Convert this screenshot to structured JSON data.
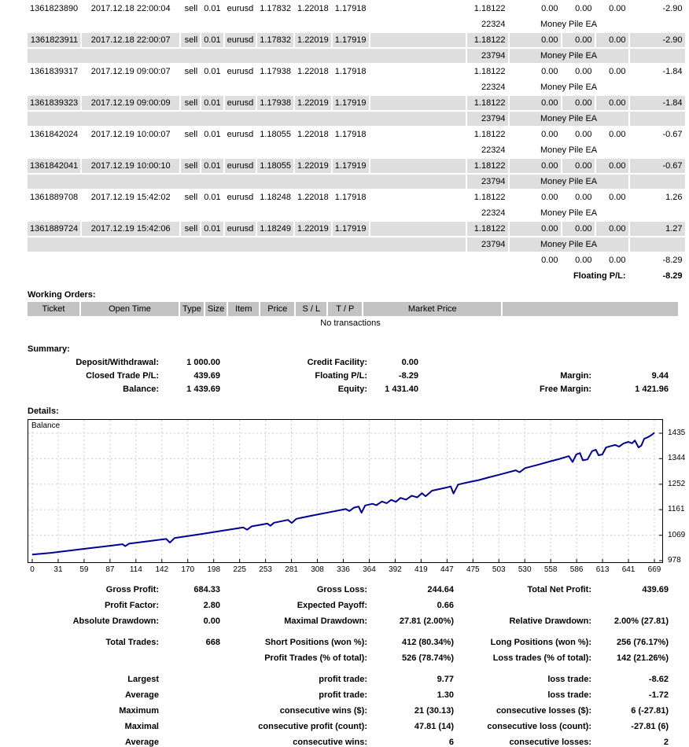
{
  "colors": {
    "row_shade": "#dedede",
    "header_shade": "#c3c3c3",
    "chart_line": "#000096",
    "grid_line": "#cccccc"
  },
  "trades": {
    "rows": [
      {
        "ticket": "1361823890",
        "open_time": "2017.12.18 22:00:04",
        "type": "sell",
        "size": "0.01",
        "item": "eurusd",
        "price": "1.17832",
        "sl": "1.22018",
        "tp": "1.17918",
        "close_price": "1.18122",
        "commission": "0.00",
        "taxes": "0.00",
        "swap": "0.00",
        "profit": "-2.90",
        "magic": "22324",
        "comment": "Money Pile EA",
        "shaded": false
      },
      {
        "ticket": "1361823911",
        "open_time": "2017.12.18 22:00:07",
        "type": "sell",
        "size": "0.01",
        "item": "eurusd",
        "price": "1.17832",
        "sl": "1.22019",
        "tp": "1.17919",
        "close_price": "1.18122",
        "commission": "0.00",
        "taxes": "0.00",
        "swap": "0.00",
        "profit": "-2.90",
        "magic": "23794",
        "comment": "Money Pile EA",
        "shaded": true
      },
      {
        "ticket": "1361839317",
        "open_time": "2017.12.19 09:00:07",
        "type": "sell",
        "size": "0.01",
        "item": "eurusd",
        "price": "1.17938",
        "sl": "1.22018",
        "tp": "1.17918",
        "close_price": "1.18122",
        "commission": "0.00",
        "taxes": "0.00",
        "swap": "0.00",
        "profit": "-1.84",
        "magic": "22324",
        "comment": "Money Pile EA",
        "shaded": false
      },
      {
        "ticket": "1361839323",
        "open_time": "2017.12.19 09:00:09",
        "type": "sell",
        "size": "0.01",
        "item": "eurusd",
        "price": "1.17938",
        "sl": "1.22019",
        "tp": "1.17919",
        "close_price": "1.18122",
        "commission": "0.00",
        "taxes": "0.00",
        "swap": "0.00",
        "profit": "-1.84",
        "magic": "23794",
        "comment": "Money Pile EA",
        "shaded": true
      },
      {
        "ticket": "1361842024",
        "open_time": "2017.12.19 10:00:07",
        "type": "sell",
        "size": "0.01",
        "item": "eurusd",
        "price": "1.18055",
        "sl": "1.22018",
        "tp": "1.17918",
        "close_price": "1.18122",
        "commission": "0.00",
        "taxes": "0.00",
        "swap": "0.00",
        "profit": "-0.67",
        "magic": "22324",
        "comment": "Money Pile EA",
        "shaded": false
      },
      {
        "ticket": "1361842041",
        "open_time": "2017.12.19 10:00:10",
        "type": "sell",
        "size": "0.01",
        "item": "eurusd",
        "price": "1.18055",
        "sl": "1.22019",
        "tp": "1.17919",
        "close_price": "1.18122",
        "commission": "0.00",
        "taxes": "0.00",
        "swap": "0.00",
        "profit": "-0.67",
        "magic": "23794",
        "comment": "Money Pile EA",
        "shaded": true
      },
      {
        "ticket": "1361889708",
        "open_time": "2017.12.19 15:42:02",
        "type": "sell",
        "size": "0.01",
        "item": "eurusd",
        "price": "1.18248",
        "sl": "1.22018",
        "tp": "1.17918",
        "close_price": "1.18122",
        "commission": "0.00",
        "taxes": "0.00",
        "swap": "0.00",
        "profit": "1.26",
        "magic": "22324",
        "comment": "Money Pile EA",
        "shaded": false
      },
      {
        "ticket": "1361889724",
        "open_time": "2017.12.19 15:42:06",
        "type": "sell",
        "size": "0.01",
        "item": "eurusd",
        "price": "1.18249",
        "sl": "1.22019",
        "tp": "1.17919",
        "close_price": "1.18122",
        "commission": "0.00",
        "taxes": "0.00",
        "swap": "0.00",
        "profit": "1.27",
        "magic": "23794",
        "comment": "Money Pile EA",
        "shaded": true
      }
    ],
    "totals": {
      "commission": "0.00",
      "taxes": "0.00",
      "swap": "0.00",
      "profit": "-8.29"
    },
    "floating_label": "Floating P/L:",
    "floating_value": "-8.29"
  },
  "working_orders": {
    "title": "Working Orders:",
    "headers": [
      "Ticket",
      "Open Time",
      "Type",
      "Size",
      "Item",
      "Price",
      "S / L",
      "T / P",
      "Market Price",
      ""
    ],
    "empty_text": "No transactions"
  },
  "summary": {
    "title": "Summary:",
    "rows": [
      [
        "Deposit/Withdrawal:",
        "1 000.00",
        "Credit Facility:",
        "0.00",
        "",
        ""
      ],
      [
        "Closed Trade P/L:",
        "439.69",
        "Floating P/L:",
        "-8.29",
        "Margin:",
        "9.44"
      ],
      [
        "Balance:",
        "1 439.69",
        "Equity:",
        "1 431.40",
        "Free Margin:",
        "1 421.96"
      ]
    ]
  },
  "details": {
    "title": "Details:"
  },
  "chart_data": {
    "type": "line",
    "title": "Balance",
    "legend": "Balance",
    "xlim": [
      0,
      669
    ],
    "ylim": [
      978,
      1435
    ],
    "x_ticks": [
      0,
      31,
      59,
      87,
      114,
      142,
      170,
      198,
      225,
      253,
      281,
      308,
      336,
      364,
      392,
      419,
      447,
      475,
      503,
      530,
      558,
      586,
      613,
      641,
      669
    ],
    "y_ticks": [
      1435,
      1344,
      1252,
      1161,
      1069,
      978
    ],
    "grid": "dashed",
    "legend_position": "top-left inside",
    "series": [
      {
        "name": "Balance",
        "points": [
          [
            0,
            1000
          ],
          [
            20,
            1006
          ],
          [
            40,
            1014
          ],
          [
            60,
            1022
          ],
          [
            80,
            1030
          ],
          [
            97,
            1037
          ],
          [
            100,
            1030
          ],
          [
            104,
            1039
          ],
          [
            125,
            1048
          ],
          [
            144,
            1056
          ],
          [
            148,
            1043
          ],
          [
            153,
            1059
          ],
          [
            175,
            1070
          ],
          [
            200,
            1083
          ],
          [
            227,
            1097
          ],
          [
            231,
            1089
          ],
          [
            236,
            1101
          ],
          [
            253,
            1111
          ],
          [
            256,
            1103
          ],
          [
            260,
            1114
          ],
          [
            275,
            1124
          ],
          [
            279,
            1113
          ],
          [
            284,
            1128
          ],
          [
            300,
            1139
          ],
          [
            320,
            1152
          ],
          [
            337,
            1163
          ],
          [
            341,
            1156
          ],
          [
            346,
            1168
          ],
          [
            351,
            1172
          ],
          [
            354,
            1150
          ],
          [
            358,
            1176
          ],
          [
            366,
            1182
          ],
          [
            370,
            1177
          ],
          [
            376,
            1190
          ],
          [
            381,
            1184
          ],
          [
            386,
            1196
          ],
          [
            391,
            1189
          ],
          [
            396,
            1203
          ],
          [
            402,
            1197
          ],
          [
            408,
            1211
          ],
          [
            414,
            1205
          ],
          [
            419,
            1220
          ],
          [
            423,
            1209
          ],
          [
            430,
            1229
          ],
          [
            445,
            1240
          ],
          [
            450,
            1244
          ],
          [
            453,
            1219
          ],
          [
            458,
            1251
          ],
          [
            470,
            1260
          ],
          [
            480,
            1267
          ],
          [
            490,
            1276
          ],
          [
            505,
            1289
          ],
          [
            520,
            1302
          ],
          [
            524,
            1295
          ],
          [
            530,
            1310
          ],
          [
            545,
            1323
          ],
          [
            558,
            1335
          ],
          [
            566,
            1342
          ],
          [
            571,
            1347
          ],
          [
            577,
            1353
          ],
          [
            581,
            1332
          ],
          [
            585,
            1359
          ],
          [
            589,
            1364
          ],
          [
            592,
            1338
          ],
          [
            597,
            1341
          ],
          [
            602,
            1371
          ],
          [
            606,
            1376
          ],
          [
            609,
            1356
          ],
          [
            613,
            1359
          ],
          [
            617,
            1384
          ],
          [
            622,
            1389
          ],
          [
            627,
            1393
          ],
          [
            631,
            1387
          ],
          [
            636,
            1399
          ],
          [
            641,
            1404
          ],
          [
            645,
            1399
          ],
          [
            648,
            1409
          ],
          [
            652,
            1384
          ],
          [
            655,
            1391
          ],
          [
            658,
            1415
          ],
          [
            662,
            1421
          ],
          [
            666,
            1429
          ],
          [
            669,
            1437
          ]
        ]
      }
    ]
  },
  "stats": {
    "groups": [
      {
        "rows": [
          [
            "Gross Profit:",
            "684.33",
            "Gross Loss:",
            "244.64",
            "Total Net Profit:",
            "439.69"
          ],
          [
            "Profit Factor:",
            "2.80",
            "Expected Payoff:",
            "0.66",
            "",
            ""
          ],
          [
            "Absolute Drawdown:",
            "0.00",
            "Maximal Drawdown:",
            "27.81 (2.00%)",
            "Relative Drawdown:",
            "2.00% (27.81)"
          ]
        ]
      },
      {
        "rows": [
          [
            "Total Trades:",
            "668",
            "Short Positions (won %):",
            "412 (80.34%)",
            "Long Positions (won %):",
            "256 (76.17%)"
          ],
          [
            "",
            "",
            "Profit Trades (% of total):",
            "526 (78.74%)",
            "Loss trades (% of total):",
            "142 (21.26%)"
          ]
        ]
      },
      {
        "rows": [
          [
            "Largest",
            "",
            "profit trade:",
            "9.77",
            "loss trade:",
            "-8.62"
          ],
          [
            "Average",
            "",
            "profit trade:",
            "1.30",
            "loss trade:",
            "-1.72"
          ],
          [
            "Maximum",
            "",
            "consecutive wins ($):",
            "21 (30.13)",
            "consecutive losses ($):",
            "6 (-27.81)"
          ],
          [
            "Maximal",
            "",
            "consecutive profit (count):",
            "47.81 (14)",
            "consecutive loss (count):",
            "-27.81 (6)"
          ],
          [
            "Average",
            "",
            "consecutive wins:",
            "6",
            "consecutive losses:",
            "2"
          ]
        ]
      }
    ]
  }
}
